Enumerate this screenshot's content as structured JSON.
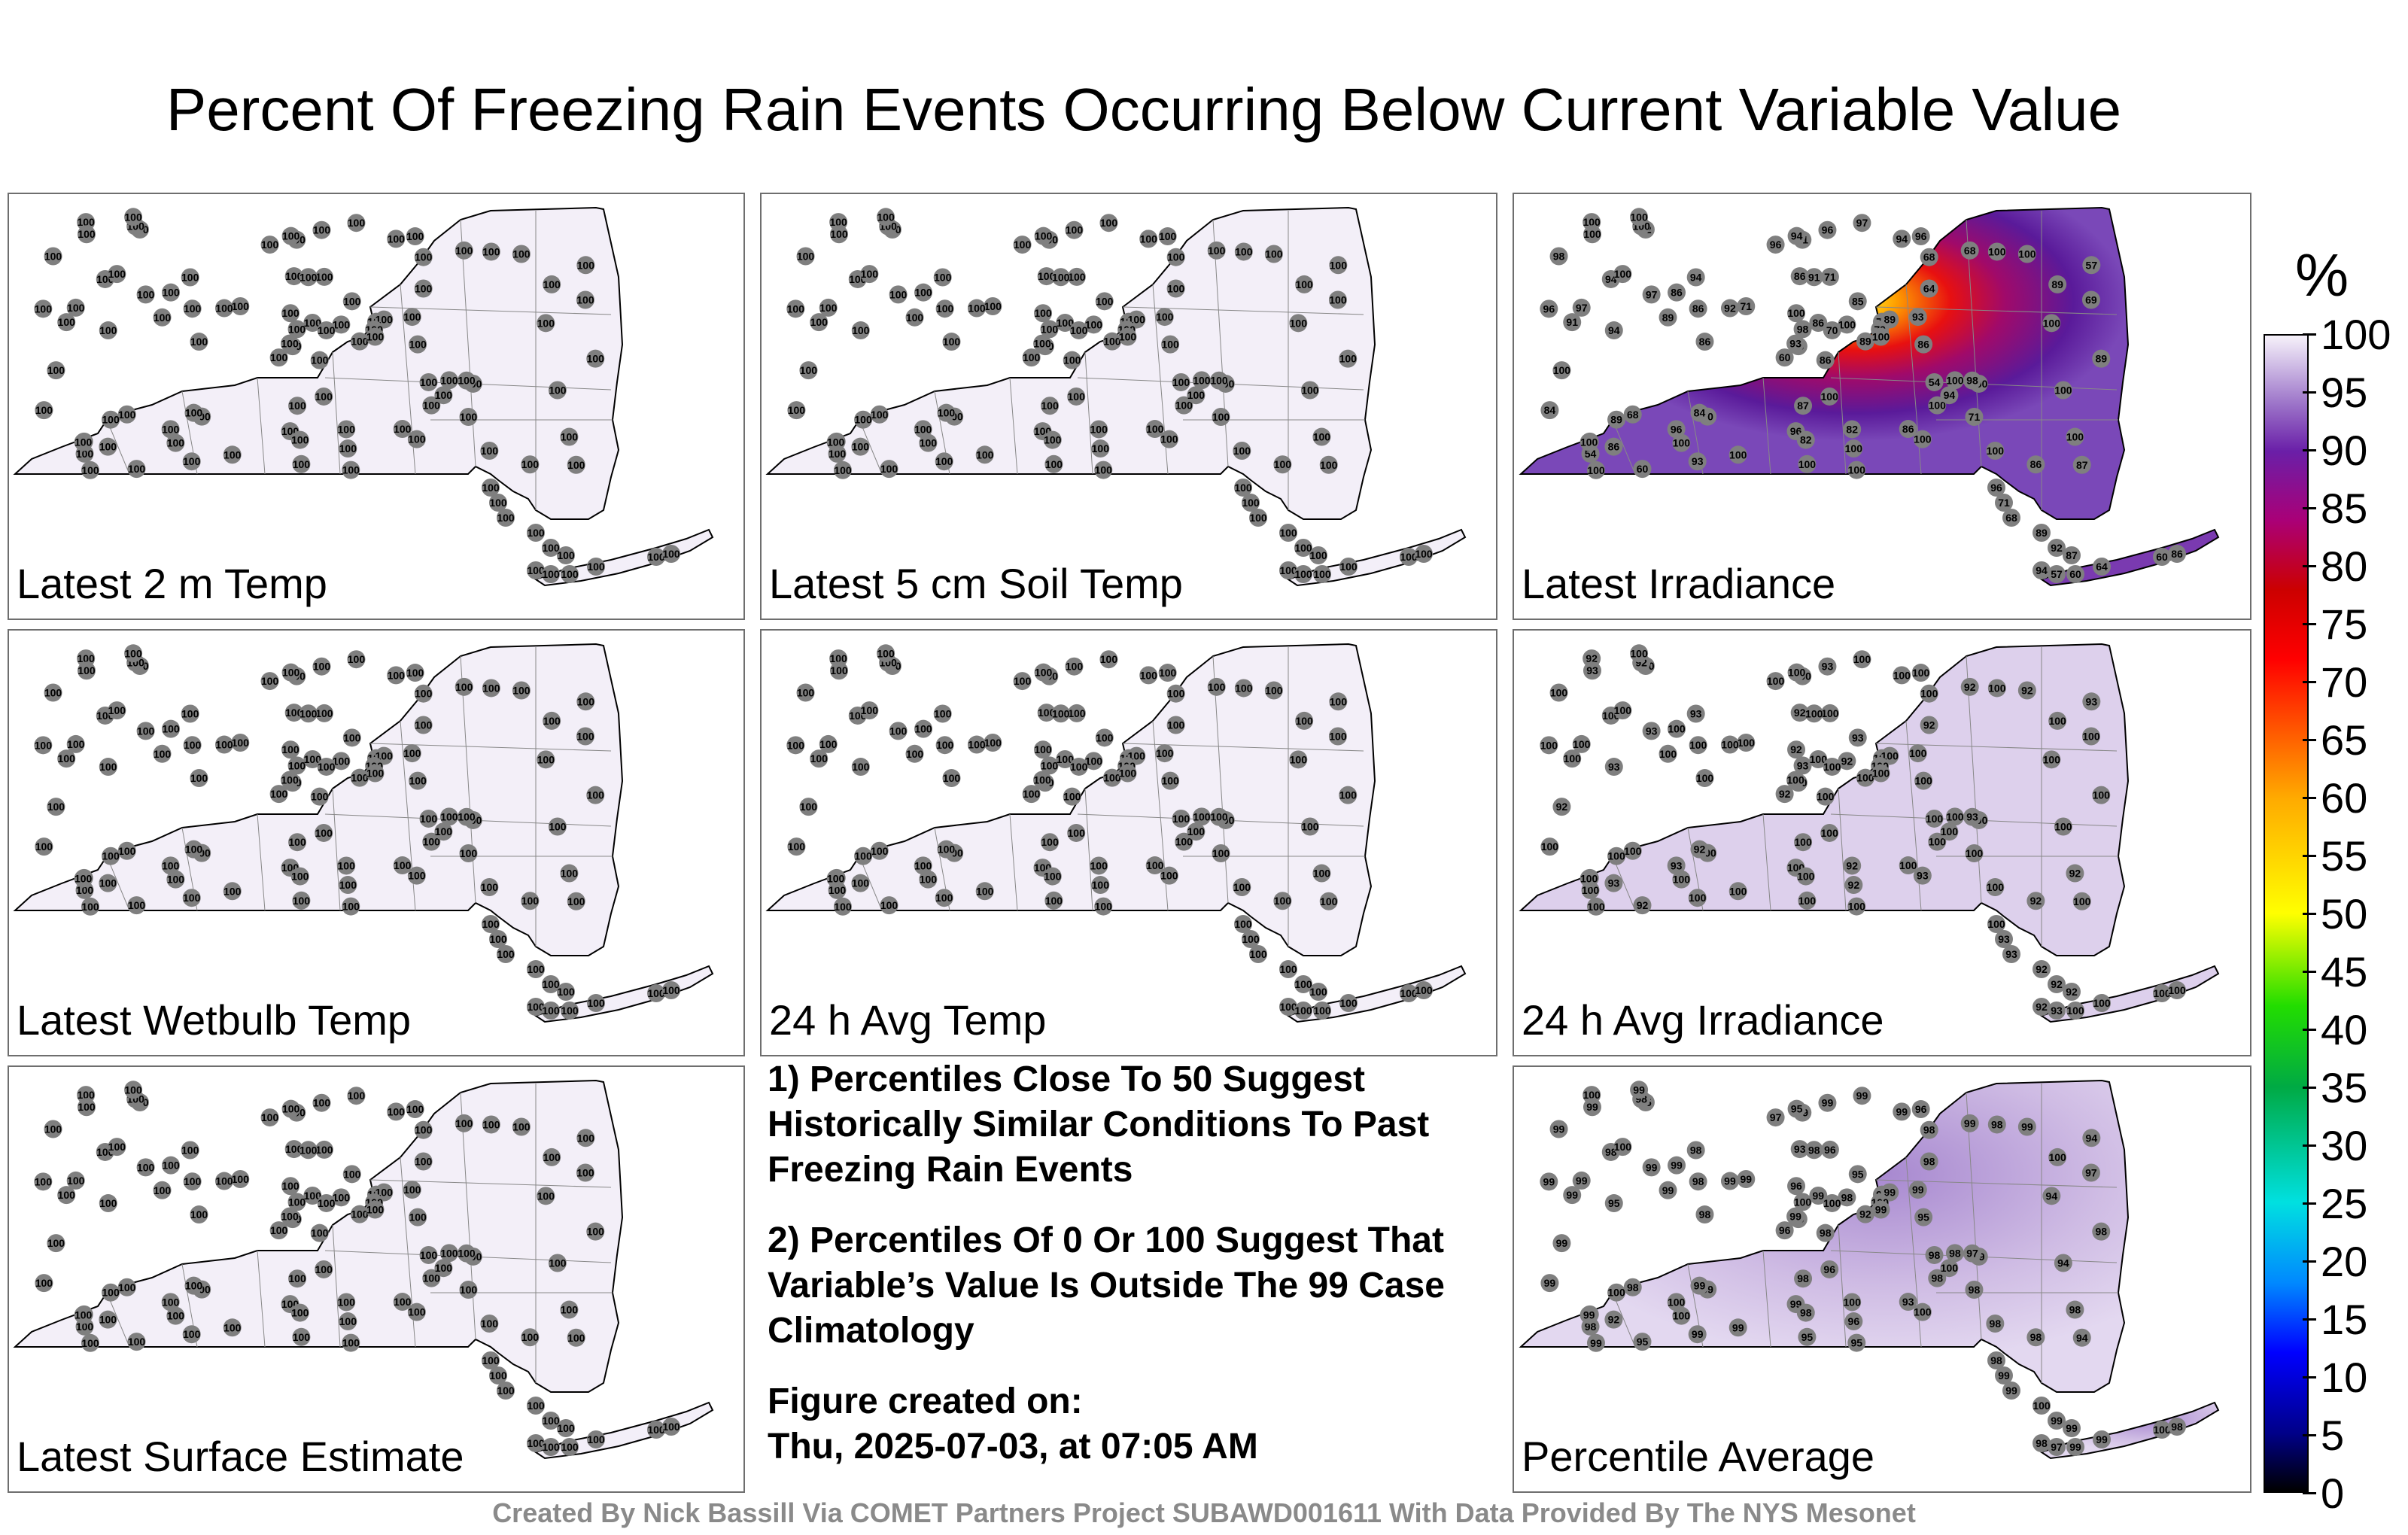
{
  "title": "Percent Of Freezing Rain Events Occurring Below Current Variable Value",
  "panels": [
    {
      "label": "Latest 2 m Temp",
      "mode": "uniform100"
    },
    {
      "label": "Latest 5 cm Soil Temp",
      "mode": "uniform100"
    },
    {
      "label": "Latest Irradiance",
      "mode": "irradiance"
    },
    {
      "label": "Latest Wetbulb Temp",
      "mode": "uniform100"
    },
    {
      "label": "24 h Avg Temp",
      "mode": "uniform100"
    },
    {
      "label": "24 h Avg Irradiance",
      "mode": "avgirr"
    },
    {
      "label": "Latest Surface Estimate",
      "mode": "uniform100"
    },
    {
      "label": "Percentile Average",
      "mode": "average"
    }
  ],
  "notes": {
    "note1": "1) Percentiles Close To 50 Suggest Historically Similar Conditions To Past Freezing Rain Events",
    "note2": "2) Percentiles Of 0 Or 100 Suggest That Variable’s Value Is Outside The 99 Case Climatology",
    "created_label": "Figure created on:",
    "created_value": "Thu, 2025-07-03, at 07:05 AM"
  },
  "colorbar": {
    "unit": "%",
    "ticks": [
      "0",
      "5",
      "10",
      "15",
      "20",
      "25",
      "30",
      "35",
      "40",
      "45",
      "50",
      "55",
      "60",
      "65",
      "70",
      "75",
      "80",
      "85",
      "90",
      "95",
      "100"
    ]
  },
  "footer": "Created By Nick Bassill Via COMET Partners Project SUBAWD001611 With Data Provided By The NYS Mesonet",
  "station_values": {
    "latest_irradiance": [
      "86",
      "94",
      "89",
      "93",
      "71",
      "70",
      "96",
      "71",
      "68",
      "89",
      "92",
      "87",
      "94",
      "57",
      "60",
      "64",
      "60",
      "86",
      "85",
      "68",
      "71",
      "54",
      "100",
      "91",
      "89",
      "100",
      "100",
      "91",
      "91",
      "54",
      "69",
      "93",
      "96",
      "98",
      "94",
      "68",
      "84",
      "86",
      "100",
      "98",
      "97",
      "92",
      "89",
      "100",
      "93",
      "96",
      "79",
      "100",
      "82",
      "100",
      "89",
      "89",
      "98",
      "94",
      "100",
      "96",
      "100",
      "100",
      "82",
      "100",
      "96",
      "86",
      "97",
      "86",
      "100",
      "100",
      "94",
      "96",
      "86",
      "84",
      "87",
      "100",
      "100",
      "86",
      "100",
      "100",
      "97",
      "100",
      "100",
      "100",
      "100",
      "86",
      "86",
      "100",
      "100",
      "100",
      "100",
      "100",
      "100"
    ],
    "average": [
      "98",
      "98",
      "99",
      "99",
      "99",
      "99",
      "96",
      "96",
      "98",
      "92",
      "95",
      "94",
      "95",
      "94",
      "96",
      "98",
      "95",
      "93",
      "95",
      "98",
      "99",
      "98",
      "100",
      "98",
      "99",
      "99",
      "100",
      "99",
      "99",
      "98",
      "97",
      "99",
      "99",
      "100",
      "98",
      "99",
      "99",
      "98",
      "98",
      "97",
      "99",
      "99",
      "99",
      "98",
      "99",
      "99",
      "100",
      "99",
      "98",
      "99",
      "100",
      "100",
      "99",
      "100",
      "100",
      "100",
      "98",
      "100",
      "100",
      "99",
      "99",
      "98",
      "99",
      "99",
      "98",
      "99",
      "99",
      "97",
      "99",
      "99",
      "98",
      "99"
    ],
    "avg_irradiance": [
      "100",
      "100",
      "100",
      "100",
      "100",
      "100",
      "100",
      "100",
      "100",
      "100",
      "100",
      "100",
      "93",
      "93",
      "92",
      "92",
      "92",
      "92",
      "93",
      "100",
      "100"
    ]
  }
}
